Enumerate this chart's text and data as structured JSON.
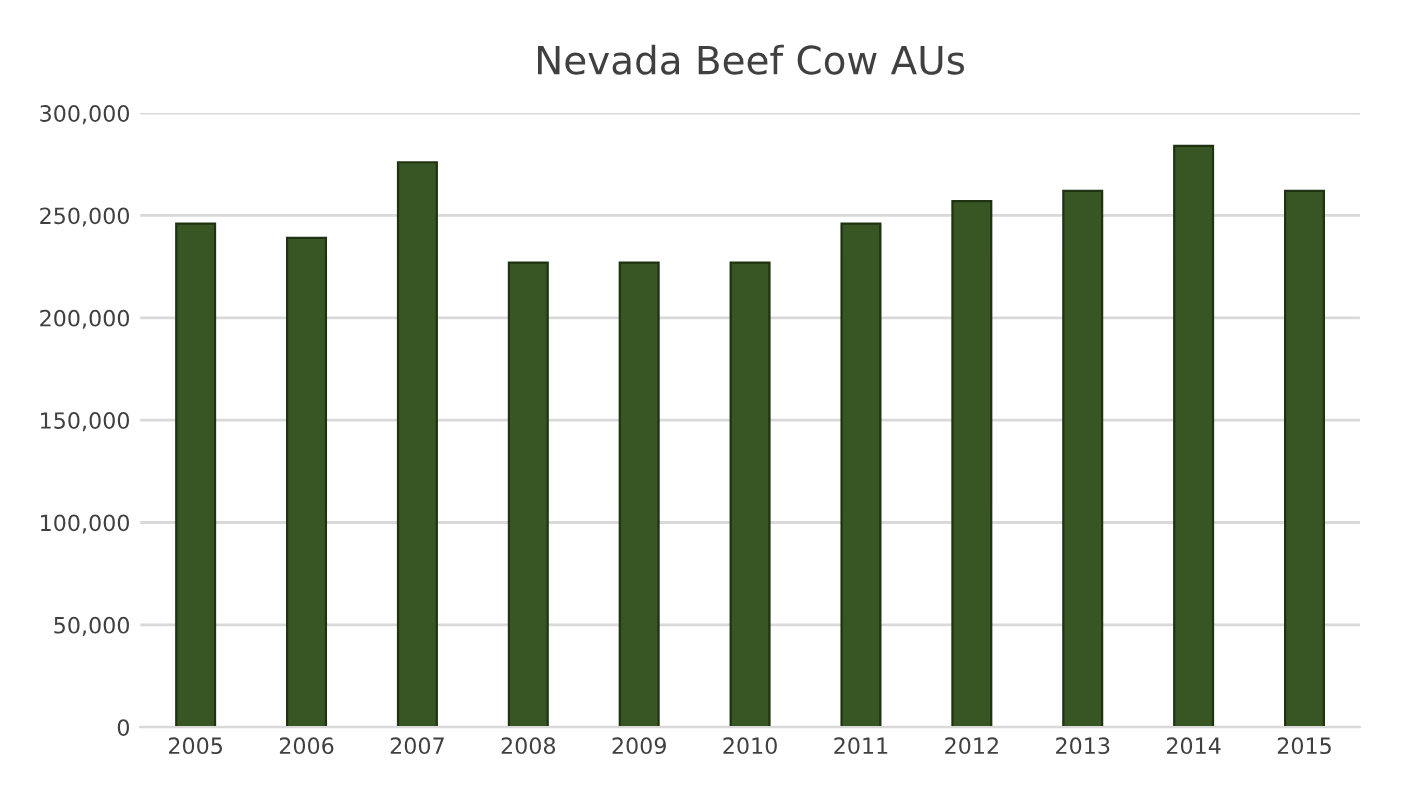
{
  "chart_data": {
    "type": "bar",
    "title": "Nevada Beef Cow AUs",
    "categories": [
      "2005",
      "2006",
      "2007",
      "2008",
      "2009",
      "2010",
      "2011",
      "2012",
      "2013",
      "2014",
      "2015"
    ],
    "values": [
      246000,
      239000,
      276000,
      227000,
      227000,
      227000,
      246000,
      257000,
      262000,
      284000,
      262000
    ],
    "color": "#375623",
    "ylim": [
      0,
      300000
    ],
    "yticks": [
      {
        "value": 0,
        "label": "0"
      },
      {
        "value": 50000,
        "label": "50,000"
      },
      {
        "value": 100000,
        "label": "100,000"
      },
      {
        "value": 150000,
        "label": "150,000"
      },
      {
        "value": 200000,
        "label": "200,000"
      },
      {
        "value": 250000,
        "label": "250,000"
      },
      {
        "value": 300000,
        "label": "300,000"
      }
    ],
    "grid": "y",
    "legend": false
  }
}
